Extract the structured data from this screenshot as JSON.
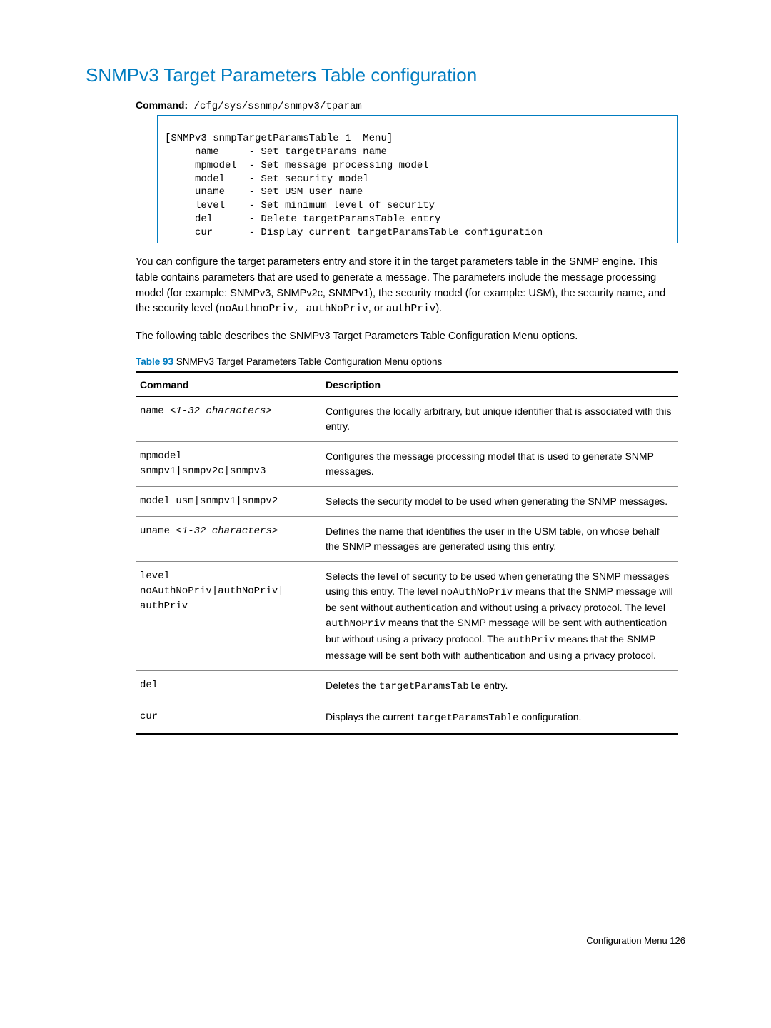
{
  "heading": "SNMPv3 Target Parameters Table configuration",
  "command": {
    "label": "Command:",
    "text": " /cfg/sys/ssnmp/snmpv3/tparam"
  },
  "codebox_lines": [
    "[SNMPv3 snmpTargetParamsTable 1  Menu]",
    "     name     - Set targetParams name",
    "     mpmodel  - Set message processing model",
    "     model    - Set security model",
    "     uname    - Set USM user name",
    "     level    - Set minimum level of security",
    "     del      - Delete targetParamsTable entry",
    "     cur      - Display current targetParamsTable configuration"
  ],
  "para1_a": "You can configure the target parameters entry and store it in the target parameters table in the SNMP engine. This table contains parameters that are used to generate a message. The parameters include the message processing model (for example: SNMPv3, SNMPv2c, SNMPv1), the security model (for example: USM), the security name, and the security level (",
  "para1_mono1": "noAuthnoPriv, authNoPriv",
  "para1_b": ", or ",
  "para1_mono2": "authPriv",
  "para1_c": ").",
  "para2": "The following table describes the SNMPv3 Target Parameters Table Configuration Menu options.",
  "table_caption": {
    "label": "Table 93",
    "text": "  SNMPv3 Target Parameters Table Configuration Menu options"
  },
  "table": {
    "headers": [
      "Command",
      "Description"
    ],
    "rows": [
      {
        "cmd_prefix": "name ",
        "cmd_ital": "<1-32 characters>",
        "desc": "Configures the locally arbitrary, but unique identifier that is associated with this entry."
      },
      {
        "cmd_two_lines_a": "mpmodel",
        "cmd_two_lines_b": "snmpv1|snmpv2c|snmpv3",
        "desc": "Configures the message processing model that is used to generate SNMP messages."
      },
      {
        "cmd_plain": "model usm|snmpv1|snmpv2",
        "desc": "Selects the security model to be used when generating the SNMP messages."
      },
      {
        "cmd_prefix": "uname ",
        "cmd_ital": "<1-32 characters>",
        "desc": "Defines the name that identifies the user in the USM table, on whose behalf the SNMP messages are generated using this entry."
      },
      {
        "cmd_three_a": "level",
        "cmd_three_b": "noAuthNoPriv|authNoPriv|",
        "cmd_three_c": "authPriv",
        "desc_a": "Selects the level of security to be used when generating the SNMP messages using this entry. The level ",
        "desc_mono1": "noAuthNoPriv",
        "desc_b": " means that the SNMP message will be sent without authentication and without using a privacy protocol. The level ",
        "desc_mono2": "authNoPriv",
        "desc_c": " means that the SNMP message will be sent with authentication but without using a privacy protocol. The ",
        "desc_mono3": "authPriv",
        "desc_d": " means that the SNMP message will be sent both with authentication and using a privacy protocol."
      },
      {
        "cmd_plain": "del",
        "desc_a": "Deletes the ",
        "desc_mono1": "targetParamsTable",
        "desc_b": " entry."
      },
      {
        "cmd_plain": "cur",
        "desc_a": "Displays the current ",
        "desc_mono1": "targetParamsTable",
        "desc_b": " configuration."
      }
    ]
  },
  "footer": "Configuration Menu   126",
  "colors": {
    "accent": "#007cc0",
    "text": "#000000",
    "border_gray": "#888888",
    "background": "#ffffff"
  }
}
